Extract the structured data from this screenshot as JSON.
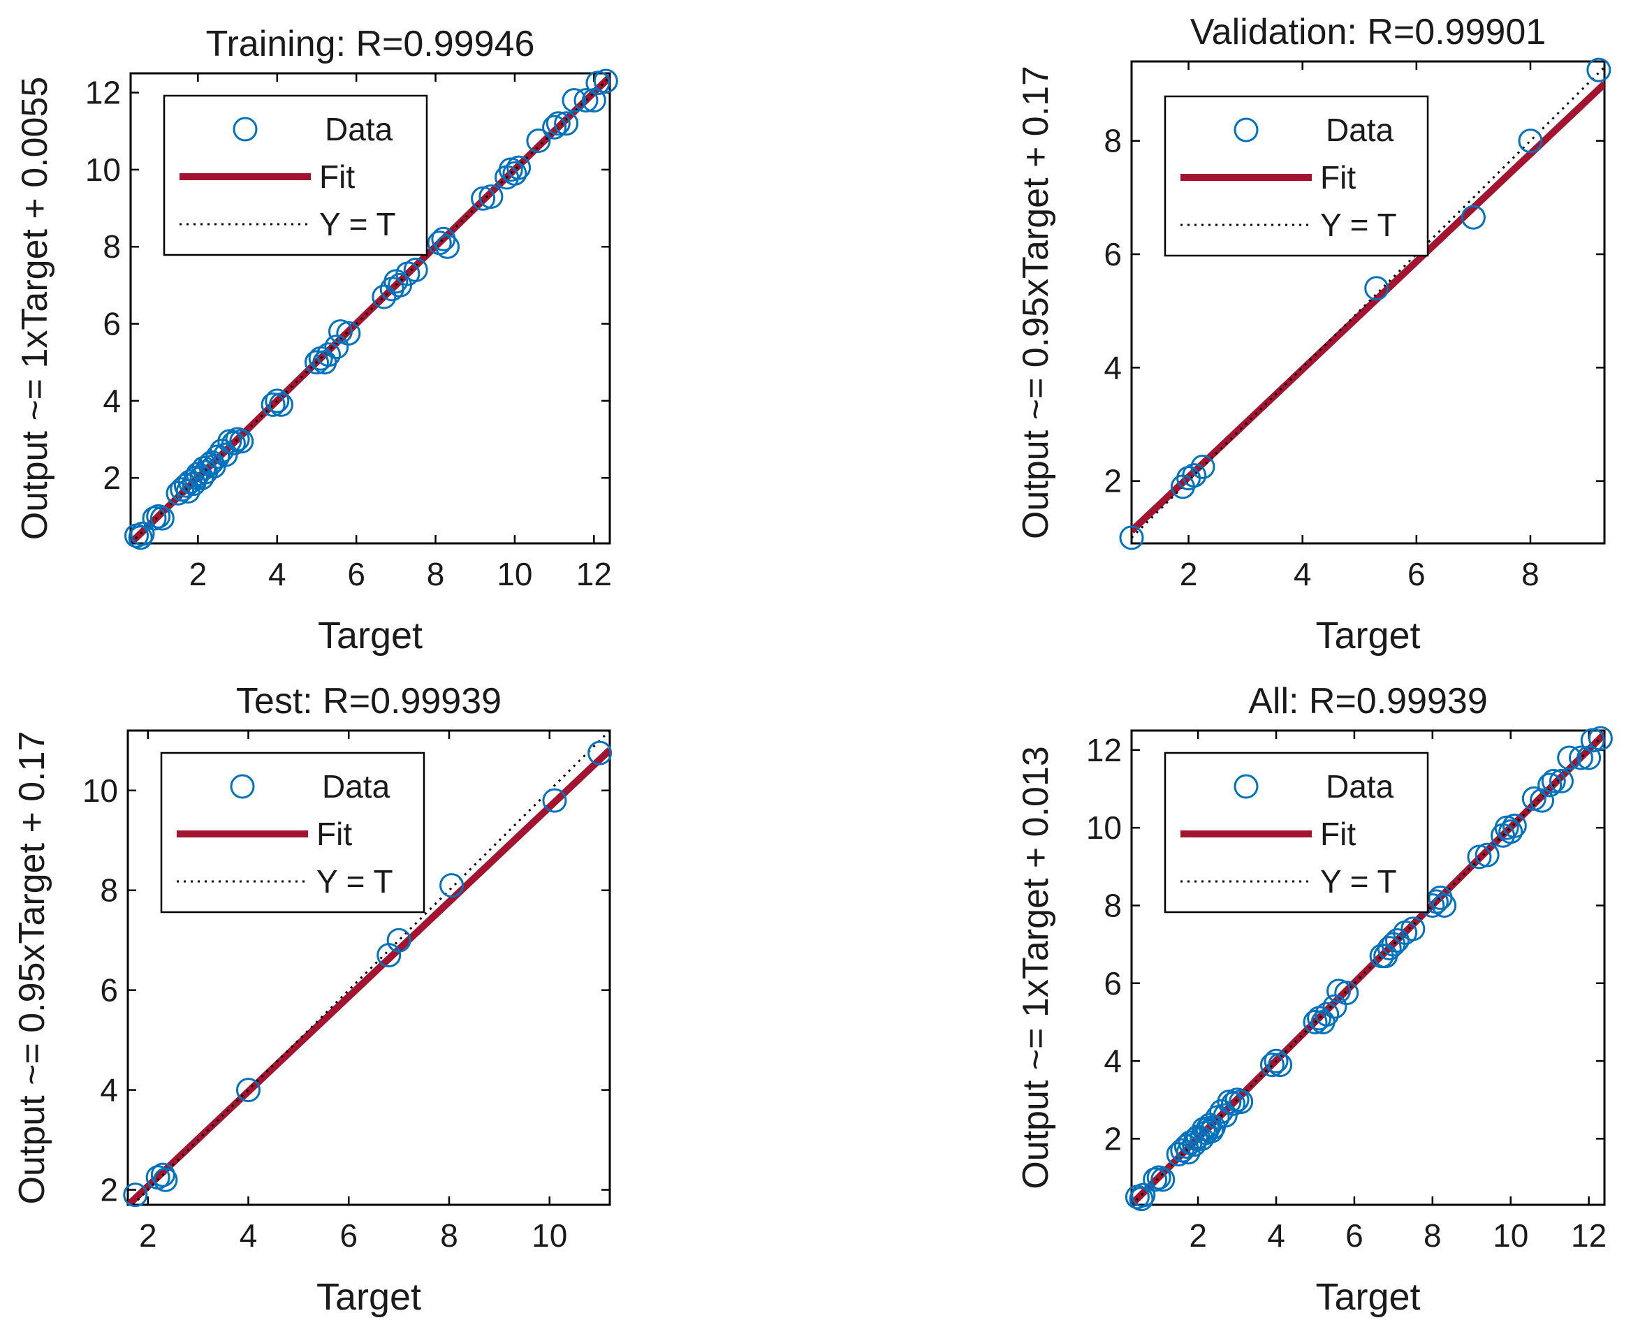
{
  "colors": {
    "data": "#0072BD",
    "fit": "#A2142F",
    "identity": "#000000",
    "axes": "#000000"
  },
  "chart_data": [
    {
      "type": "scatter",
      "title": "Training: R=0.99946",
      "xlabel": "Target",
      "ylabel": "Output ~= 1xTarget + 0.0055",
      "xlim": [
        0.3,
        12.4
      ],
      "ylim": [
        0.3,
        12.5
      ],
      "xticks": [
        2,
        4,
        6,
        8,
        10,
        12
      ],
      "yticks": [
        2,
        4,
        6,
        8,
        10,
        12
      ],
      "fit": {
        "slope": 1.0,
        "intercept": 0.0055
      },
      "legend": {
        "position": "top-left",
        "entries": [
          "Data",
          "Fit",
          "Y = T"
        ]
      },
      "grid": false,
      "points": [
        [
          0.45,
          0.5
        ],
        [
          0.55,
          0.45
        ],
        [
          0.6,
          0.55
        ],
        [
          0.9,
          0.95
        ],
        [
          1.1,
          0.95
        ],
        [
          1.0,
          1.0
        ],
        [
          1.5,
          1.6
        ],
        [
          1.6,
          1.7
        ],
        [
          1.7,
          1.8
        ],
        [
          1.75,
          1.65
        ],
        [
          1.8,
          1.9
        ],
        [
          1.9,
          1.85
        ],
        [
          1.95,
          2.0
        ],
        [
          2.0,
          2.1
        ],
        [
          2.1,
          2.0
        ],
        [
          2.15,
          2.25
        ],
        [
          2.2,
          2.15
        ],
        [
          2.3,
          2.35
        ],
        [
          2.35,
          2.4
        ],
        [
          2.4,
          2.3
        ],
        [
          2.5,
          2.55
        ],
        [
          2.6,
          2.7
        ],
        [
          2.7,
          2.6
        ],
        [
          2.8,
          2.95
        ],
        [
          2.9,
          2.9
        ],
        [
          3.0,
          3.0
        ],
        [
          3.1,
          2.95
        ],
        [
          3.9,
          3.9
        ],
        [
          4.0,
          4.0
        ],
        [
          4.1,
          3.9
        ],
        [
          5.0,
          5.0
        ],
        [
          5.1,
          5.1
        ],
        [
          5.2,
          5.0
        ],
        [
          5.3,
          5.2
        ],
        [
          5.5,
          5.4
        ],
        [
          5.6,
          5.8
        ],
        [
          5.8,
          5.75
        ],
        [
          6.7,
          6.7
        ],
        [
          6.9,
          6.9
        ],
        [
          7.0,
          7.1
        ],
        [
          7.1,
          7.0
        ],
        [
          7.3,
          7.3
        ],
        [
          7.5,
          7.4
        ],
        [
          8.1,
          8.1
        ],
        [
          8.2,
          8.2
        ],
        [
          8.3,
          8.0
        ],
        [
          9.2,
          9.25
        ],
        [
          9.4,
          9.3
        ],
        [
          9.8,
          9.8
        ],
        [
          9.9,
          10.0
        ],
        [
          10.0,
          9.9
        ],
        [
          10.1,
          10.05
        ],
        [
          10.6,
          10.75
        ],
        [
          11.0,
          11.1
        ],
        [
          11.1,
          11.2
        ],
        [
          11.3,
          11.2
        ],
        [
          11.5,
          11.8
        ],
        [
          11.8,
          11.8
        ],
        [
          12.0,
          11.8
        ],
        [
          12.1,
          12.25
        ],
        [
          12.3,
          12.3
        ]
      ]
    },
    {
      "type": "scatter",
      "title": "Validation: R=0.99901",
      "xlabel": "Target",
      "ylabel": "Output ~= 0.95xTarget + 0.17",
      "xlim": [
        1.0,
        9.3
      ],
      "ylim": [
        0.9,
        9.4
      ],
      "xticks": [
        2,
        4,
        6,
        8
      ],
      "yticks": [
        2,
        4,
        6,
        8
      ],
      "fit": {
        "slope": 0.95,
        "intercept": 0.17
      },
      "legend": {
        "position": "top-left",
        "entries": [
          "Data",
          "Fit",
          "Y = T"
        ]
      },
      "grid": false,
      "points": [
        [
          1.0,
          1.0
        ],
        [
          1.9,
          1.9
        ],
        [
          2.0,
          2.05
        ],
        [
          2.1,
          2.1
        ],
        [
          2.25,
          2.25
        ],
        [
          5.3,
          5.4
        ],
        [
          7.0,
          6.65
        ],
        [
          8.0,
          8.0
        ],
        [
          9.2,
          9.25
        ]
      ]
    },
    {
      "type": "scatter",
      "title": "Test: R=0.99939",
      "xlabel": "Target",
      "ylabel": "Output ~= 0.95xTarget + 0.17",
      "xlim": [
        1.6,
        11.2
      ],
      "ylim": [
        1.7,
        11.2
      ],
      "xticks": [
        2,
        4,
        6,
        8,
        10
      ],
      "yticks": [
        2,
        4,
        6,
        8,
        10
      ],
      "fit": {
        "slope": 0.95,
        "intercept": 0.17
      },
      "legend": {
        "position": "top-left",
        "entries": [
          "Data",
          "Fit",
          "Y = T"
        ]
      },
      "grid": false,
      "points": [
        [
          1.75,
          1.9
        ],
        [
          2.2,
          2.25
        ],
        [
          2.3,
          2.3
        ],
        [
          2.35,
          2.2
        ],
        [
          4.0,
          4.0
        ],
        [
          6.8,
          6.7
        ],
        [
          7.0,
          7.0
        ],
        [
          8.05,
          8.1
        ],
        [
          10.1,
          9.8
        ],
        [
          11.0,
          10.75
        ]
      ]
    },
    {
      "type": "scatter",
      "title": "All: R=0.99939",
      "xlabel": "Target",
      "ylabel": "Output ~= 1xTarget + 0.013",
      "xlim": [
        0.3,
        12.4
      ],
      "ylim": [
        0.3,
        12.5
      ],
      "xticks": [
        2,
        4,
        6,
        8,
        10,
        12
      ],
      "yticks": [
        2,
        4,
        6,
        8,
        10,
        12
      ],
      "fit": {
        "slope": 1.0,
        "intercept": 0.013
      },
      "legend": {
        "position": "top-left",
        "entries": [
          "Data",
          "Fit",
          "Y = T"
        ]
      },
      "grid": false,
      "points": [
        [
          0.45,
          0.5
        ],
        [
          0.55,
          0.45
        ],
        [
          0.6,
          0.55
        ],
        [
          0.9,
          0.95
        ],
        [
          1.0,
          1.0
        ],
        [
          1.1,
          0.95
        ],
        [
          1.5,
          1.6
        ],
        [
          1.6,
          1.7
        ],
        [
          1.7,
          1.8
        ],
        [
          1.75,
          1.65
        ],
        [
          1.8,
          1.9
        ],
        [
          1.9,
          1.85
        ],
        [
          1.95,
          2.0
        ],
        [
          2.0,
          2.05
        ],
        [
          2.1,
          2.0
        ],
        [
          2.15,
          2.25
        ],
        [
          2.2,
          2.15
        ],
        [
          2.25,
          2.25
        ],
        [
          2.3,
          2.35
        ],
        [
          2.35,
          2.2
        ],
        [
          2.4,
          2.3
        ],
        [
          2.5,
          2.55
        ],
        [
          2.6,
          2.7
        ],
        [
          2.7,
          2.6
        ],
        [
          2.8,
          2.95
        ],
        [
          2.9,
          2.9
        ],
        [
          3.0,
          3.0
        ],
        [
          3.1,
          2.95
        ],
        [
          3.9,
          3.9
        ],
        [
          4.0,
          4.0
        ],
        [
          4.1,
          3.9
        ],
        [
          5.0,
          5.0
        ],
        [
          5.1,
          5.1
        ],
        [
          5.2,
          5.0
        ],
        [
          5.3,
          5.2
        ],
        [
          5.5,
          5.4
        ],
        [
          5.6,
          5.8
        ],
        [
          5.8,
          5.75
        ],
        [
          6.7,
          6.7
        ],
        [
          6.8,
          6.7
        ],
        [
          6.9,
          6.9
        ],
        [
          7.0,
          7.0
        ],
        [
          7.1,
          7.1
        ],
        [
          7.3,
          7.3
        ],
        [
          7.5,
          7.4
        ],
        [
          8.0,
          8.0
        ],
        [
          8.1,
          8.1
        ],
        [
          8.2,
          8.2
        ],
        [
          8.3,
          8.0
        ],
        [
          9.2,
          9.25
        ],
        [
          9.4,
          9.3
        ],
        [
          9.8,
          9.8
        ],
        [
          9.9,
          10.0
        ],
        [
          10.0,
          9.9
        ],
        [
          10.1,
          10.05
        ],
        [
          10.6,
          10.75
        ],
        [
          10.8,
          10.7
        ],
        [
          11.0,
          11.1
        ],
        [
          11.1,
          11.2
        ],
        [
          11.3,
          11.2
        ],
        [
          11.5,
          11.8
        ],
        [
          11.8,
          11.8
        ],
        [
          12.0,
          11.8
        ],
        [
          12.1,
          12.25
        ],
        [
          12.3,
          12.3
        ]
      ]
    }
  ]
}
